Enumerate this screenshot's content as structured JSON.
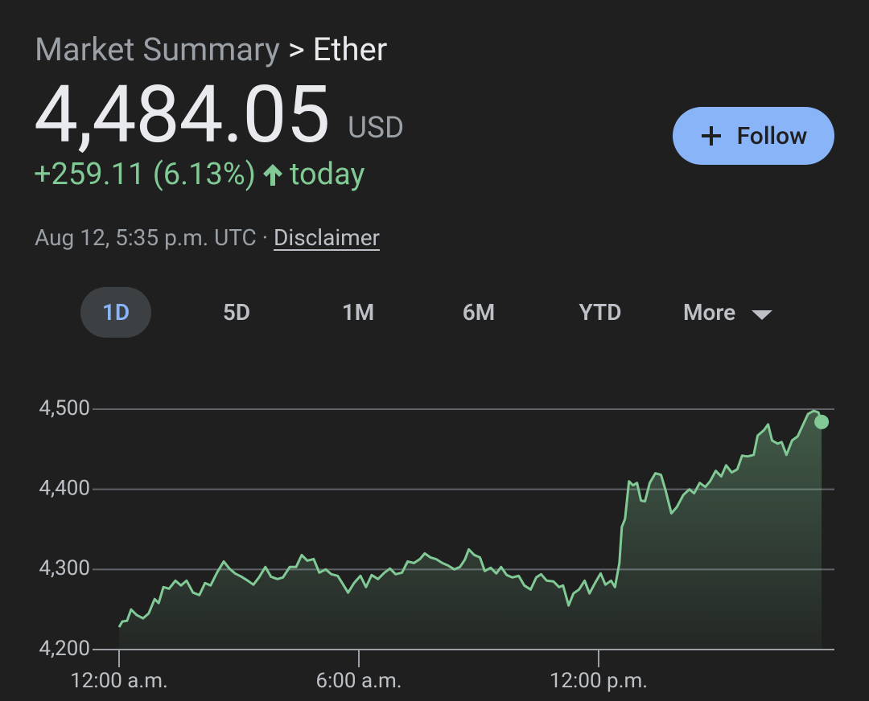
{
  "header": {
    "breadcrumb_parent": "Market Summary",
    "breadcrumb_separator": ">",
    "breadcrumb_current": "Ether",
    "price": "4,484.05",
    "currency": "USD",
    "change": "+259.11 (6.13%)",
    "change_period": "today",
    "timestamp": "Aug 12, 5:35 p.m. UTC",
    "separator": "·",
    "disclaimer": "Disclaimer"
  },
  "follow_button": "Follow",
  "tabs": [
    "1D",
    "5D",
    "1M",
    "6M",
    "YTD",
    "More"
  ],
  "chart_data": {
    "type": "line",
    "color": "#81c995",
    "x": [
      0,
      0.08,
      0.2,
      0.3,
      0.44,
      0.6,
      0.74,
      0.89,
      0.99,
      1.11,
      1.25,
      1.41,
      1.55,
      1.69,
      1.85,
      2.01,
      2.15,
      2.29,
      2.45,
      2.62,
      2.76,
      2.9,
      3.06,
      3.22,
      3.36,
      3.5,
      3.66,
      3.8,
      3.96,
      4.1,
      4.27,
      4.43,
      4.57,
      4.71,
      4.87,
      5.01,
      5.17,
      5.31,
      5.47,
      5.61,
      5.73,
      5.88,
      6.04,
      6.18,
      6.32,
      6.48,
      6.64,
      6.78,
      6.92,
      7.08,
      7.22,
      7.38,
      7.53,
      7.65,
      7.79,
      7.93,
      8.09,
      8.23,
      8.39,
      8.53,
      8.65,
      8.75,
      8.89,
      9.03,
      9.15,
      9.3,
      9.44,
      9.56,
      9.7,
      9.84,
      10,
      10.14,
      10.3,
      10.44,
      10.56,
      10.7,
      10.87,
      11.01,
      11.11,
      11.25,
      11.37,
      11.51,
      11.65,
      11.77,
      11.91,
      12.05,
      12.17,
      12.31,
      12.41,
      12.52,
      12.58,
      12.66,
      12.76,
      12.86,
      12.96,
      13.06,
      13.16,
      13.28,
      13.42,
      13.56,
      13.68,
      13.82,
      13.96,
      14.12,
      14.27,
      14.39,
      14.53,
      14.67,
      14.79,
      14.93,
      15.07,
      15.19,
      15.33,
      15.47,
      15.59,
      15.73,
      15.88,
      15.98,
      16.14,
      16.24,
      16.34,
      16.48,
      16.58,
      16.7,
      16.84,
      16.98,
      17.1,
      17.24,
      17.38,
      17.5,
      17.58
    ],
    "values": [
      4228,
      4235,
      4236,
      4250,
      4243,
      4239,
      4245,
      4263,
      4258,
      4278,
      4276,
      4286,
      4280,
      4286,
      4271,
      4268,
      4283,
      4280,
      4296,
      4310,
      4301,
      4295,
      4291,
      4286,
      4281,
      4290,
      4303,
      4291,
      4288,
      4290,
      4303,
      4303,
      4318,
      4311,
      4313,
      4296,
      4300,
      4294,
      4292,
      4281,
      4271,
      4283,
      4292,
      4278,
      4293,
      4288,
      4296,
      4301,
      4294,
      4296,
      4310,
      4308,
      4313,
      4320,
      4315,
      4313,
      4308,
      4305,
      4300,
      4303,
      4312,
      4325,
      4318,
      4315,
      4298,
      4302,
      4295,
      4303,
      4293,
      4290,
      4292,
      4280,
      4275,
      4290,
      4294,
      4286,
      4285,
      4278,
      4280,
      4255,
      4270,
      4275,
      4286,
      4270,
      4283,
      4295,
      4281,
      4286,
      4278,
      4308,
      4353,
      4363,
      4410,
      4405,
      4408,
      4386,
      4385,
      4408,
      4420,
      4418,
      4398,
      4370,
      4378,
      4393,
      4400,
      4395,
      4408,
      4403,
      4410,
      4423,
      4416,
      4430,
      4421,
      4425,
      4442,
      4441,
      4443,
      4467,
      4474,
      4481,
      4461,
      4457,
      4459,
      4443,
      4461,
      4466,
      4479,
      4494,
      4498,
      4496,
      4484.05
    ],
    "xlim": [
      0,
      17.9
    ],
    "xticks": [
      {
        "value": 0,
        "label": "12:00 a.m."
      },
      {
        "value": 6,
        "label": "6:00 a.m."
      },
      {
        "value": 12,
        "label": "12:00 p.m."
      }
    ],
    "ylim": [
      4200,
      4500
    ],
    "yticks": [
      {
        "value": 4200,
        "label": "4,200"
      },
      {
        "value": 4300,
        "label": "4,300"
      },
      {
        "value": 4400,
        "label": "4,400"
      },
      {
        "value": 4500,
        "label": "4,500"
      }
    ],
    "grid": true
  }
}
